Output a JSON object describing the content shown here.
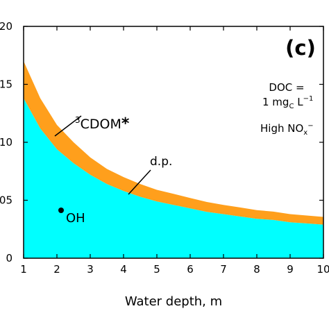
{
  "chart_data": {
    "type": "area",
    "panel_label": "(c)",
    "xlabel": "Water depth, m",
    "ylabel": "",
    "xlim": [
      1,
      10
    ],
    "ylim": [
      0,
      0.2
    ],
    "xticks": [
      1,
      2,
      3,
      4,
      5,
      6,
      7,
      8,
      9,
      10
    ],
    "yticks": [
      0,
      0.05,
      0.1,
      0.15,
      0.2
    ],
    "ytick_labels": [
      "0",
      "05",
      "10",
      "15",
      "20"
    ],
    "grid": false,
    "x": [
      1,
      1.5,
      2,
      2.5,
      3,
      3.5,
      4,
      4.5,
      5,
      5.5,
      6,
      6.5,
      7,
      7.5,
      8,
      8.5,
      9,
      9.5,
      10
    ],
    "series": [
      {
        "name": "OH",
        "color": "#00ffff",
        "values": [
          0.138,
          0.112,
          0.094,
          0.082,
          0.072,
          0.064,
          0.058,
          0.053,
          0.049,
          0.046,
          0.043,
          0.04,
          0.038,
          0.036,
          0.034,
          0.033,
          0.031,
          0.03,
          0.029
        ]
      },
      {
        "name": "3CDOM*",
        "color": "#ff9f1c",
        "values": [
          0.032,
          0.026,
          0.021,
          0.018,
          0.015,
          0.013,
          0.012,
          0.011,
          0.01,
          0.0095,
          0.009,
          0.0085,
          0.008,
          0.0078,
          0.0075,
          0.0072,
          0.007,
          0.0068,
          0.0066
        ]
      }
    ],
    "annotations": {
      "cdom_label_sup": "3",
      "cdom_label": "CDOM",
      "cdom_star": "*",
      "dp_label": "d.p.",
      "oh_label": "OH",
      "doc_line1": "DOC =",
      "doc_line2_pre": "1 mg",
      "doc_line2_sub": "C",
      "doc_line2_post": " L",
      "doc_line2_sup": "−1",
      "nox_pre": "High NO",
      "nox_sub": "x",
      "nox_sup": "−"
    }
  }
}
